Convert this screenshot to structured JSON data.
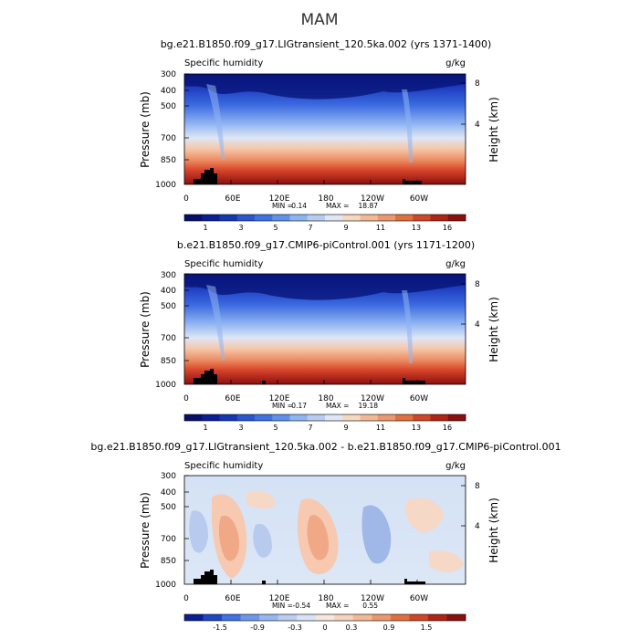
{
  "figure": {
    "season": "MAM"
  },
  "chart_data": [
    {
      "type": "heatmap",
      "title": "bg.e21.B1850.f09_g17.LIGtransient_120.5ka.002 (yrs 1371-1400)",
      "variable": "Specific humidity",
      "units": "g/kg",
      "xlabel": "",
      "ylabel": "Pressure (mb)",
      "y2label": "Height (km)",
      "xticks": [
        "0",
        "60E",
        "120E",
        "180",
        "120W",
        "60W"
      ],
      "xlim": [
        0,
        360
      ],
      "yticks": [
        "300",
        "400",
        "500",
        "700",
        "850",
        "1000"
      ],
      "ylim": [
        1000,
        300
      ],
      "y2ticks": [
        "8",
        "4"
      ],
      "stats": {
        "min_label": "MIN =",
        "min": "0.14",
        "max_label": "MAX =",
        "max": "18.87"
      },
      "colorbar": {
        "labels": [
          "1",
          "3",
          "5",
          "7",
          "9",
          "11",
          "13",
          "16"
        ]
      }
    },
    {
      "type": "heatmap",
      "title": "b.e21.B1850.f09_g17.CMIP6-piControl.001 (yrs 1171-1200)",
      "variable": "Specific humidity",
      "units": "g/kg",
      "xlabel": "",
      "ylabel": "Pressure (mb)",
      "y2label": "Height (km)",
      "xticks": [
        "0",
        "60E",
        "120E",
        "180",
        "120W",
        "60W"
      ],
      "xlim": [
        0,
        360
      ],
      "yticks": [
        "300",
        "400",
        "500",
        "700",
        "850",
        "1000"
      ],
      "ylim": [
        1000,
        300
      ],
      "y2ticks": [
        "8",
        "4"
      ],
      "stats": {
        "min_label": "MIN =",
        "min": "0.17",
        "max_label": "MAX =",
        "max": "19.18"
      },
      "colorbar": {
        "labels": [
          "1",
          "3",
          "5",
          "7",
          "9",
          "11",
          "13",
          "16"
        ]
      }
    },
    {
      "type": "heatmap",
      "title": "bg.e21.B1850.f09_g17.LIGtransient_120.5ka.002 - b.e21.B1850.f09_g17.CMIP6-piControl.001",
      "variable": "Specific humidity",
      "units": "g/kg",
      "xlabel": "",
      "ylabel": "Pressure (mb)",
      "y2label": "Height (km)",
      "xticks": [
        "0",
        "60E",
        "120E",
        "180",
        "120W",
        "60W"
      ],
      "xlim": [
        0,
        360
      ],
      "yticks": [
        "300",
        "400",
        "500",
        "700",
        "850",
        "1000"
      ],
      "ylim": [
        1000,
        300
      ],
      "y2ticks": [
        "8",
        "4"
      ],
      "stats": {
        "min_label": "MIN =",
        "min": "-0.54",
        "max_label": "MAX =",
        "max": "0.55"
      },
      "colorbar": {
        "labels": [
          "-1.5",
          "-0.9",
          "-0.3",
          "0",
          "0.3",
          "0.9",
          "1.5"
        ]
      }
    }
  ]
}
